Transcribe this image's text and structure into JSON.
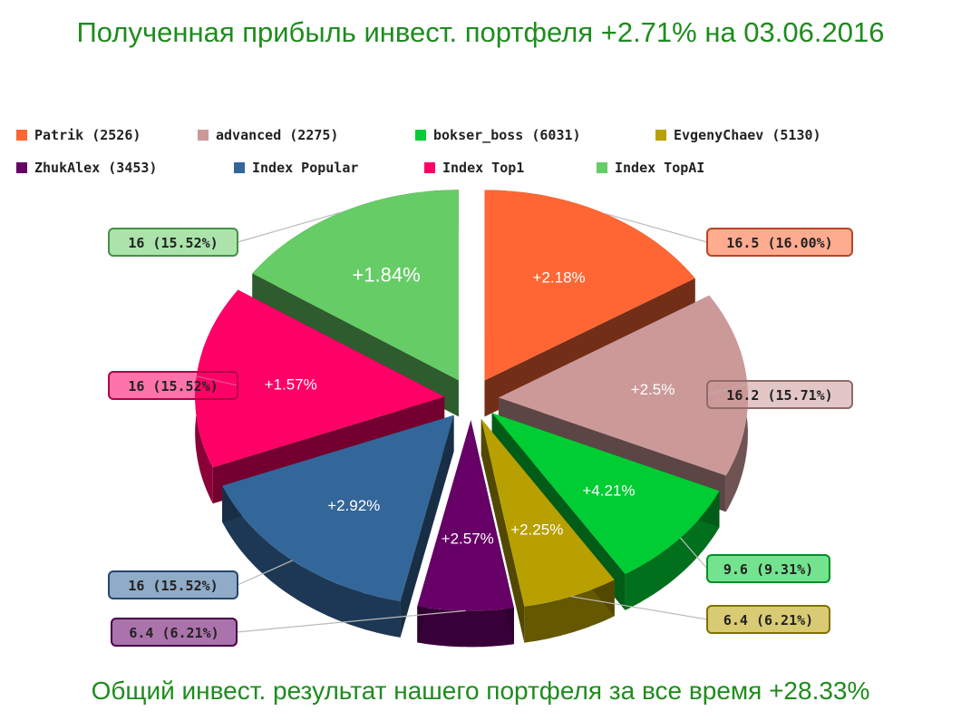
{
  "title": "Полученная прибыль инвест. портфеля +2.71% на 03.06.2016",
  "footer": "Общий инвест. результат нашего портфеля за все время +28.33%",
  "chart_data": {
    "type": "pie",
    "series": [
      {
        "name": "Patrik (2526)",
        "value": 16.5,
        "label": "16.5 (16.00%)",
        "inner": "+2.18%",
        "color": "#ff6633"
      },
      {
        "name": "advanced (2275)",
        "value": 16.2,
        "label": "16.2 (15.71%)",
        "inner": "+2.5%",
        "color": "#cc9999"
      },
      {
        "name": "bokser_boss (6031)",
        "value": 9.6,
        "label": "9.6 (9.31%)",
        "inner": "+4.21%",
        "color": "#00cc33"
      },
      {
        "name": "EvgenyChaev (5130)",
        "value": 6.4,
        "label": "6.4 (6.21%)",
        "inner": "+2.25%",
        "color": "#b8a000"
      },
      {
        "name": "ZhukAlex (3453)",
        "value": 6.4,
        "label": "6.4 (6.21%)",
        "inner": "+2.57%",
        "color": "#660066"
      },
      {
        "name": "Index Popular",
        "value": 16,
        "label": "16 (15.52%)",
        "inner": "+2.92%",
        "color": "#336699"
      },
      {
        "name": "Index Top1",
        "value": 16,
        "label": "16 (15.52%)",
        "inner": "+1.57%",
        "color": "#ff0066"
      },
      {
        "name": "Index TopAI",
        "value": 16,
        "label": "16 (15.52%)",
        "inner": "+1.84%",
        "color": "#66cc66"
      }
    ]
  }
}
